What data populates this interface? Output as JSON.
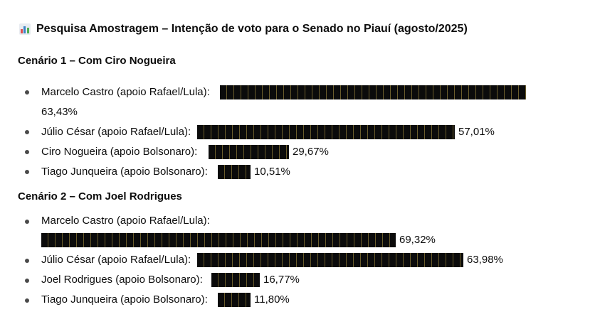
{
  "title": {
    "icon": "bar-chart-icon",
    "text": "Pesquisa Amostragem – Intenção de voto para o Senado no Piauí (agosto/2025)"
  },
  "scenario1": {
    "heading": "Cenário 1 – Com Ciro Nogueira",
    "items": [
      {
        "label": "Marcelo Castro (apoio Rafael/Lula):",
        "value": "63,43%",
        "percent": 63.43
      },
      {
        "label": "Júlio César (apoio Rafael/Lula):",
        "value": "57,01%",
        "percent": 57.01
      },
      {
        "label": "Ciro Nogueira (apoio Bolsonaro):",
        "value": "29,67%",
        "percent": 29.67
      },
      {
        "label": "Tiago Junqueira (apoio Bolsonaro):",
        "value": "10,51%",
        "percent": 10.51
      }
    ]
  },
  "scenario2": {
    "heading": "Cenário 2 – Com Joel Rodrigues",
    "items": [
      {
        "label": "Marcelo Castro (apoio Rafael/Lula):",
        "value": "69,32%",
        "percent": 69.32
      },
      {
        "label": "Júlio César (apoio Rafael/Lula):",
        "value": "63,98%",
        "percent": 63.98
      },
      {
        "label": "Joel Rodrigues (apoio Bolsonaro):",
        "value": "16,77%",
        "percent": 16.77
      },
      {
        "label": "Tiago Junqueira (apoio Bolsonaro):",
        "value": "11,80%",
        "percent": 11.8
      }
    ]
  },
  "colors": {
    "bar": "#0b0b0b",
    "bar_separator": "#6b5d2c",
    "text": "#0d0d0d",
    "icon_bars": [
      "#e05252",
      "#3b82c4",
      "#4caf50"
    ]
  }
}
